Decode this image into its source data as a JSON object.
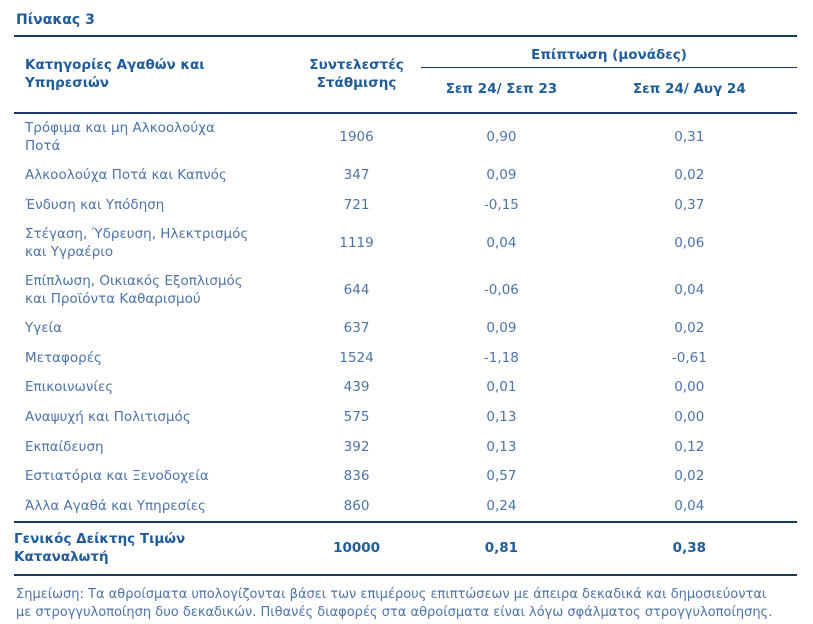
{
  "page": {
    "title": "Πίνακας 3"
  },
  "table": {
    "headers": {
      "categories": "Κατηγορίες Αγαθών και\nΥπηρεσιών",
      "weights": "Συντελεστές\nΣτάθμισης",
      "impact_group": "Επίπτωση (μονάδες)",
      "impact_yoy": "Σεπ 24/ Σεπ 23",
      "impact_mom": "Σεπ 24/ Αυγ 24"
    },
    "rows": [
      {
        "category": "Τρόφιμα και μη Αλκοολούχα\nΠοτά",
        "weight": "1906",
        "impact_yoy": "0,90",
        "impact_mom": "0,31"
      },
      {
        "category": "Αλκοολούχα Ποτά και Καπνός",
        "weight": "347",
        "impact_yoy": "0,09",
        "impact_mom": "0,02"
      },
      {
        "category": "Ένδυση και Υπόδηση",
        "weight": "721",
        "impact_yoy": "-0,15",
        "impact_mom": "0,37"
      },
      {
        "category": "Στέγαση, Ύδρευση, Ηλεκτρισμός\nκαι Υγραέριο",
        "weight": "1119",
        "impact_yoy": "0,04",
        "impact_mom": "0,06"
      },
      {
        "category": "Επίπλωση, Οικιακός Εξοπλισμός\nκαι Προϊόντα Καθαρισμού",
        "weight": "644",
        "impact_yoy": "-0,06",
        "impact_mom": "0,04"
      },
      {
        "category": "Υγεία",
        "weight": "637",
        "impact_yoy": "0,09",
        "impact_mom": "0,02"
      },
      {
        "category": "Μεταφορές",
        "weight": "1524",
        "impact_yoy": "-1,18",
        "impact_mom": "-0,61"
      },
      {
        "category": "Επικοινωνίες",
        "weight": "439",
        "impact_yoy": "0,01",
        "impact_mom": "0,00"
      },
      {
        "category": "Αναψυχή και Πολιτισμός",
        "weight": "575",
        "impact_yoy": "0,13",
        "impact_mom": "0,00"
      },
      {
        "category": "Εκπαίδευση",
        "weight": "392",
        "impact_yoy": "0,13",
        "impact_mom": "0,12"
      },
      {
        "category": "Εστιατόρια και Ξενοδοχεία",
        "weight": "836",
        "impact_yoy": "0,57",
        "impact_mom": "0,02"
      },
      {
        "category": "Άλλα Αγαθά και Υπηρεσίες",
        "weight": "860",
        "impact_yoy": "0,24",
        "impact_mom": "0,04"
      }
    ],
    "total": {
      "category": "Γενικός Δείκτης Τιμών\nΚαταναλωτή",
      "weight": "10000",
      "impact_yoy": "0,81",
      "impact_mom": "0,38"
    }
  },
  "note": "Σημείωση: Τα αθροίσματα υπολογίζονται βάσει των επιμέρους επιπτώσεων με άπειρα δεκαδικά και δημοσιεύονται\nμε στρογγυλοποίηση δυο δεκαδικών. Πιθανές διαφορές στα αθροίσματα είναι λόγω σφάλματος στρογγυλοποίησης.",
  "colors": {
    "header_blue": "#1f5c99",
    "row_blue": "#4d74a8",
    "rule_navy": "#17375e"
  }
}
